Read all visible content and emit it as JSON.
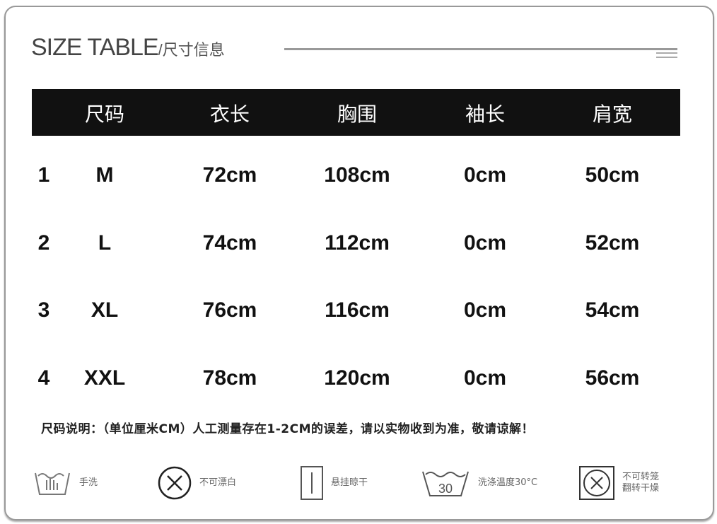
{
  "title": {
    "main": "SIZE TABLE",
    "sub": "/尺寸信息"
  },
  "table": {
    "headers": [
      "尺码",
      "衣长",
      "胸围",
      "袖长",
      "肩宽"
    ],
    "rows": [
      {
        "index": "1",
        "size": "M",
        "length": "72cm",
        "chest": "108cm",
        "sleeve": "0cm",
        "shoulder": "50cm"
      },
      {
        "index": "2",
        "size": "L",
        "length": "74cm",
        "chest": "112cm",
        "sleeve": "0cm",
        "shoulder": "52cm"
      },
      {
        "index": "3",
        "size": "XL",
        "length": "76cm",
        "chest": "116cm",
        "sleeve": "0cm",
        "shoulder": "54cm"
      },
      {
        "index": "4",
        "size": "XXL",
        "length": "78cm",
        "chest": "120cm",
        "sleeve": "0cm",
        "shoulder": "56cm"
      }
    ]
  },
  "note": "尺码说明：（单位厘米CM）人工测量存在1-2CM的误差，请以实物收到为准，敬请谅解！",
  "care": [
    {
      "icon": "hand-wash-icon",
      "label": "手洗"
    },
    {
      "icon": "no-bleach-icon",
      "label": "不可漂白"
    },
    {
      "icon": "line-dry-icon",
      "label": "悬挂晾干"
    },
    {
      "icon": "wash-30-icon",
      "label": "洗涤温度30°C",
      "temp": "30"
    },
    {
      "icon": "no-tumble-dry-icon",
      "label": "不可转笼翻转干燥"
    }
  ]
}
